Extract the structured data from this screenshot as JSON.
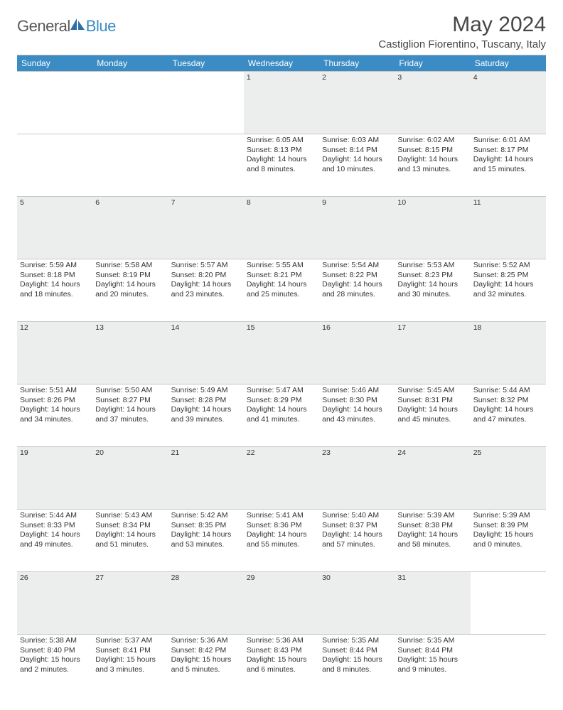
{
  "brand": {
    "general": "General",
    "blue": "Blue"
  },
  "title": "May 2024",
  "location": "Castiglion Fiorentino, Tuscany, Italy",
  "colors": {
    "header_bg": "#3b8bc4",
    "header_text": "#ffffff",
    "daynum_bg": "#eceded",
    "border": "#c8c8c8",
    "text": "#333333",
    "title_text": "#474747",
    "logo_gray": "#58595b",
    "logo_blue": "#3b8bc4"
  },
  "typography": {
    "title_fontsize": 30,
    "location_fontsize": 15,
    "dayhead_fontsize": 12,
    "cell_fontsize": 10.5
  },
  "weekdays": [
    "Sunday",
    "Monday",
    "Tuesday",
    "Wednesday",
    "Thursday",
    "Friday",
    "Saturday"
  ],
  "weeks": [
    [
      {
        "day": "",
        "lines": [
          "",
          "",
          "",
          ""
        ]
      },
      {
        "day": "",
        "lines": [
          "",
          "",
          "",
          ""
        ]
      },
      {
        "day": "",
        "lines": [
          "",
          "",
          "",
          ""
        ]
      },
      {
        "day": "1",
        "lines": [
          "Sunrise: 6:05 AM",
          "Sunset: 8:13 PM",
          "Daylight: 14 hours",
          "and 8 minutes."
        ]
      },
      {
        "day": "2",
        "lines": [
          "Sunrise: 6:03 AM",
          "Sunset: 8:14 PM",
          "Daylight: 14 hours",
          "and 10 minutes."
        ]
      },
      {
        "day": "3",
        "lines": [
          "Sunrise: 6:02 AM",
          "Sunset: 8:15 PM",
          "Daylight: 14 hours",
          "and 13 minutes."
        ]
      },
      {
        "day": "4",
        "lines": [
          "Sunrise: 6:01 AM",
          "Sunset: 8:17 PM",
          "Daylight: 14 hours",
          "and 15 minutes."
        ]
      }
    ],
    [
      {
        "day": "5",
        "lines": [
          "Sunrise: 5:59 AM",
          "Sunset: 8:18 PM",
          "Daylight: 14 hours",
          "and 18 minutes."
        ]
      },
      {
        "day": "6",
        "lines": [
          "Sunrise: 5:58 AM",
          "Sunset: 8:19 PM",
          "Daylight: 14 hours",
          "and 20 minutes."
        ]
      },
      {
        "day": "7",
        "lines": [
          "Sunrise: 5:57 AM",
          "Sunset: 8:20 PM",
          "Daylight: 14 hours",
          "and 23 minutes."
        ]
      },
      {
        "day": "8",
        "lines": [
          "Sunrise: 5:55 AM",
          "Sunset: 8:21 PM",
          "Daylight: 14 hours",
          "and 25 minutes."
        ]
      },
      {
        "day": "9",
        "lines": [
          "Sunrise: 5:54 AM",
          "Sunset: 8:22 PM",
          "Daylight: 14 hours",
          "and 28 minutes."
        ]
      },
      {
        "day": "10",
        "lines": [
          "Sunrise: 5:53 AM",
          "Sunset: 8:23 PM",
          "Daylight: 14 hours",
          "and 30 minutes."
        ]
      },
      {
        "day": "11",
        "lines": [
          "Sunrise: 5:52 AM",
          "Sunset: 8:25 PM",
          "Daylight: 14 hours",
          "and 32 minutes."
        ]
      }
    ],
    [
      {
        "day": "12",
        "lines": [
          "Sunrise: 5:51 AM",
          "Sunset: 8:26 PM",
          "Daylight: 14 hours",
          "and 34 minutes."
        ]
      },
      {
        "day": "13",
        "lines": [
          "Sunrise: 5:50 AM",
          "Sunset: 8:27 PM",
          "Daylight: 14 hours",
          "and 37 minutes."
        ]
      },
      {
        "day": "14",
        "lines": [
          "Sunrise: 5:49 AM",
          "Sunset: 8:28 PM",
          "Daylight: 14 hours",
          "and 39 minutes."
        ]
      },
      {
        "day": "15",
        "lines": [
          "Sunrise: 5:47 AM",
          "Sunset: 8:29 PM",
          "Daylight: 14 hours",
          "and 41 minutes."
        ]
      },
      {
        "day": "16",
        "lines": [
          "Sunrise: 5:46 AM",
          "Sunset: 8:30 PM",
          "Daylight: 14 hours",
          "and 43 minutes."
        ]
      },
      {
        "day": "17",
        "lines": [
          "Sunrise: 5:45 AM",
          "Sunset: 8:31 PM",
          "Daylight: 14 hours",
          "and 45 minutes."
        ]
      },
      {
        "day": "18",
        "lines": [
          "Sunrise: 5:44 AM",
          "Sunset: 8:32 PM",
          "Daylight: 14 hours",
          "and 47 minutes."
        ]
      }
    ],
    [
      {
        "day": "19",
        "lines": [
          "Sunrise: 5:44 AM",
          "Sunset: 8:33 PM",
          "Daylight: 14 hours",
          "and 49 minutes."
        ]
      },
      {
        "day": "20",
        "lines": [
          "Sunrise: 5:43 AM",
          "Sunset: 8:34 PM",
          "Daylight: 14 hours",
          "and 51 minutes."
        ]
      },
      {
        "day": "21",
        "lines": [
          "Sunrise: 5:42 AM",
          "Sunset: 8:35 PM",
          "Daylight: 14 hours",
          "and 53 minutes."
        ]
      },
      {
        "day": "22",
        "lines": [
          "Sunrise: 5:41 AM",
          "Sunset: 8:36 PM",
          "Daylight: 14 hours",
          "and 55 minutes."
        ]
      },
      {
        "day": "23",
        "lines": [
          "Sunrise: 5:40 AM",
          "Sunset: 8:37 PM",
          "Daylight: 14 hours",
          "and 57 minutes."
        ]
      },
      {
        "day": "24",
        "lines": [
          "Sunrise: 5:39 AM",
          "Sunset: 8:38 PM",
          "Daylight: 14 hours",
          "and 58 minutes."
        ]
      },
      {
        "day": "25",
        "lines": [
          "Sunrise: 5:39 AM",
          "Sunset: 8:39 PM",
          "Daylight: 15 hours",
          "and 0 minutes."
        ]
      }
    ],
    [
      {
        "day": "26",
        "lines": [
          "Sunrise: 5:38 AM",
          "Sunset: 8:40 PM",
          "Daylight: 15 hours",
          "and 2 minutes."
        ]
      },
      {
        "day": "27",
        "lines": [
          "Sunrise: 5:37 AM",
          "Sunset: 8:41 PM",
          "Daylight: 15 hours",
          "and 3 minutes."
        ]
      },
      {
        "day": "28",
        "lines": [
          "Sunrise: 5:36 AM",
          "Sunset: 8:42 PM",
          "Daylight: 15 hours",
          "and 5 minutes."
        ]
      },
      {
        "day": "29",
        "lines": [
          "Sunrise: 5:36 AM",
          "Sunset: 8:43 PM",
          "Daylight: 15 hours",
          "and 6 minutes."
        ]
      },
      {
        "day": "30",
        "lines": [
          "Sunrise: 5:35 AM",
          "Sunset: 8:44 PM",
          "Daylight: 15 hours",
          "and 8 minutes."
        ]
      },
      {
        "day": "31",
        "lines": [
          "Sunrise: 5:35 AM",
          "Sunset: 8:44 PM",
          "Daylight: 15 hours",
          "and 9 minutes."
        ]
      },
      {
        "day": "",
        "lines": [
          "",
          "",
          "",
          ""
        ]
      }
    ]
  ]
}
